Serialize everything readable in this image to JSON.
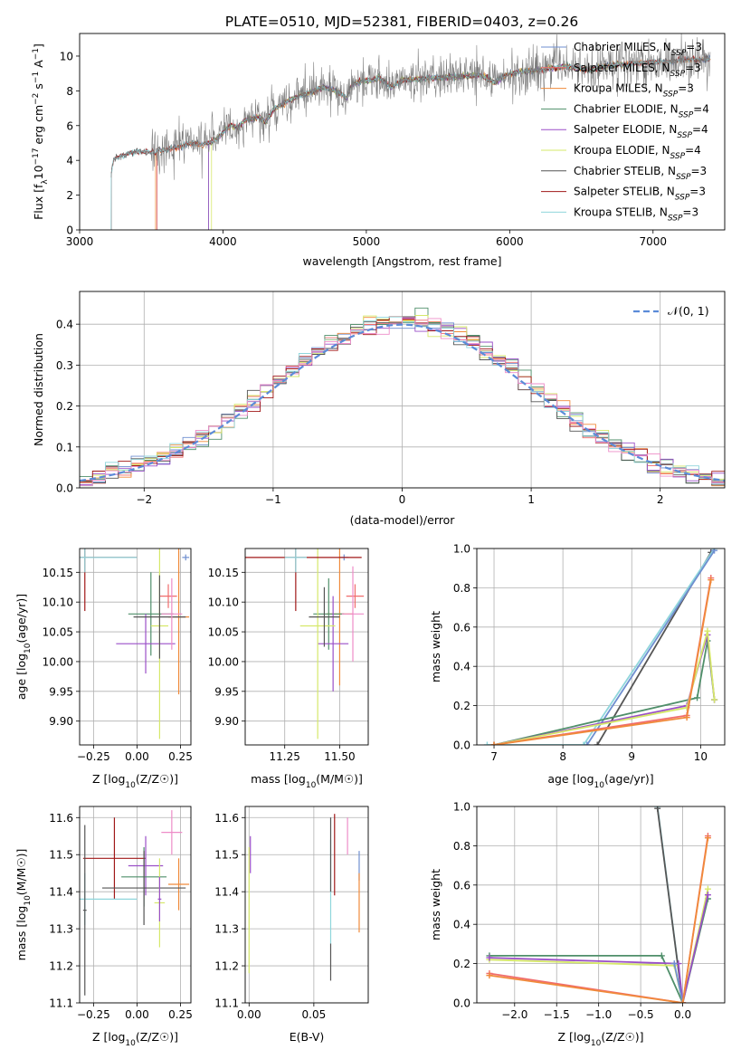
{
  "figure_title": "PLATE=0510, MJD=52381, FIBERID=0403, z=0.26",
  "colors": {
    "Chabrier MILES": "#6f8fd0",
    "Salpeter MILES": "#f06c6c",
    "Kroupa MILES": "#f08a3a",
    "Chabrier ELODIE": "#4f8f6a",
    "Salpeter ELODIE": "#9a4fc8",
    "Kroupa ELODIE": "#d6e86a",
    "Chabrier STELIB": "#555555",
    "Salpeter STELIB": "#a01818",
    "Kroupa STELIB": "#8fd6dc",
    "pink": "#ee8cc8",
    "normal": "#5b8bd8"
  },
  "chart_data": [
    {
      "id": "spectrum",
      "type": "line",
      "title": "PLATE=0510, MJD=52381, FIBERID=0403, z=0.26",
      "xlabel": "wavelength [Angstrom, rest frame]",
      "ylabel": "Flux [f_λ 10^-17 erg cm^-2 s^-1 A^-1]",
      "xlim": [
        3000,
        7500
      ],
      "ylim": [
        0,
        11.3
      ],
      "xticks": [
        3000,
        4000,
        5000,
        6000,
        7000
      ],
      "yticks": [
        0,
        2,
        4,
        6,
        8,
        10
      ],
      "grid": false,
      "legend_position": "right",
      "legend": [
        {
          "name": "Chabrier MILES",
          "base": "Chabrier MILES",
          "nssp": "=3"
        },
        {
          "name": "Salpeter MILES",
          "base": "Salpeter MILES",
          "nssp": "=3"
        },
        {
          "name": "Kroupa MILES",
          "base": "Kroupa MILES",
          "nssp": "=3"
        },
        {
          "name": "Chabrier ELODIE",
          "base": "Chabrier ELODIE",
          "nssp": "=4"
        },
        {
          "name": "Salpeter ELODIE",
          "base": "Salpeter ELODIE",
          "nssp": "=4"
        },
        {
          "name": "Kroupa ELODIE",
          "base": "Kroupa ELODIE",
          "nssp": "=4"
        },
        {
          "name": "Chabrier STELIB",
          "base": "Chabrier STELIB",
          "nssp": "=3"
        },
        {
          "name": "Salpeter STELIB",
          "base": "Salpeter STELIB",
          "nssp": "=3"
        },
        {
          "name": "Kroupa STELIB",
          "base": "Kroupa STELIB",
          "nssp": "=3"
        }
      ],
      "continuum": [
        [
          3220,
          3.2
        ],
        [
          3240,
          4.1
        ],
        [
          3300,
          4.3
        ],
        [
          3400,
          4.5
        ],
        [
          3500,
          4.5
        ],
        [
          3600,
          4.6
        ],
        [
          3700,
          4.8
        ],
        [
          3800,
          5.0
        ],
        [
          3850,
          4.9
        ],
        [
          3900,
          5.0
        ],
        [
          3950,
          5.2
        ],
        [
          4000,
          5.6
        ],
        [
          4050,
          6.0
        ],
        [
          4100,
          5.9
        ],
        [
          4150,
          6.3
        ],
        [
          4200,
          6.4
        ],
        [
          4250,
          6.5
        ],
        [
          4300,
          6.2
        ],
        [
          4350,
          6.9
        ],
        [
          4400,
          7.2
        ],
        [
          4500,
          7.6
        ],
        [
          4600,
          7.9
        ],
        [
          4700,
          8.2
        ],
        [
          4800,
          8.0
        ],
        [
          4860,
          7.6
        ],
        [
          4900,
          8.4
        ],
        [
          5000,
          8.6
        ],
        [
          5100,
          8.7
        ],
        [
          5170,
          8.2
        ],
        [
          5250,
          8.6
        ],
        [
          5400,
          8.7
        ],
        [
          5600,
          8.8
        ],
        [
          5800,
          8.9
        ],
        [
          5890,
          8.5
        ],
        [
          6000,
          9.0
        ],
        [
          6200,
          9.2
        ],
        [
          6400,
          9.4
        ],
        [
          6563,
          9.2
        ],
        [
          6700,
          9.5
        ],
        [
          6900,
          9.6
        ],
        [
          7100,
          9.7
        ],
        [
          7300,
          9.8
        ]
      ],
      "model_ranges": {
        "Chabrier MILES": [
          3540,
          7400
        ],
        "Salpeter MILES": [
          3540,
          7400
        ],
        "Kroupa MILES": [
          3530,
          7400
        ],
        "Chabrier ELODIE": [
          3900,
          6800
        ],
        "Salpeter ELODIE": [
          3900,
          6800
        ],
        "Kroupa ELODIE": [
          3920,
          6800
        ],
        "Chabrier STELIB": [
          3220,
          7400
        ],
        "Salpeter STELIB": [
          3220,
          7400
        ],
        "Kroupa STELIB": [
          3220,
          7400
        ]
      }
    },
    {
      "id": "histogram",
      "type": "line",
      "xlabel": "(data-model)/error",
      "ylabel": "Normed distribution",
      "xlim": [
        -2.5,
        2.5
      ],
      "ylim": [
        0,
        0.48
      ],
      "xticks": [
        -2,
        -1,
        0,
        1,
        2
      ],
      "yticks": [
        0.0,
        0.1,
        0.2,
        0.3,
        0.4
      ],
      "grid": true,
      "legend_position": "top-right",
      "normal_label": "𝒩(0, 1)",
      "bin_width": 0.1,
      "bins_start": -2.5
    },
    {
      "id": "age_vs_Z",
      "type": "scatter",
      "xlabel": "Z [log10(Z/Z☉)]",
      "ylabel": "age [log10(age/yr)]",
      "xlim": [
        -0.33,
        0.31
      ],
      "ylim": [
        9.86,
        10.19
      ],
      "xticks": [
        -0.25,
        0.0,
        0.25
      ],
      "yticks": [
        9.9,
        9.95,
        10.0,
        10.05,
        10.1,
        10.15
      ],
      "grid": true,
      "points": [
        {
          "model": "Chabrier MILES",
          "x": 0.28,
          "y": 10.175,
          "xerr": 0.02,
          "yerr": 0.005
        },
        {
          "model": "Salpeter MILES",
          "x": 0.18,
          "y": 10.11,
          "xerr": 0.05,
          "yerr": 0.02
        },
        {
          "model": "Kroupa MILES",
          "x": 0.24,
          "y": 10.075,
          "xerr": 0.06,
          "yerr": 0.13
        },
        {
          "model": "Chabrier ELODIE",
          "x": 0.08,
          "y": 10.08,
          "xerr": 0.13,
          "yerr": 0.07
        },
        {
          "model": "Salpeter ELODIE",
          "x": 0.05,
          "y": 10.03,
          "xerr": 0.17,
          "yerr": 0.05
        },
        {
          "model": "Kroupa ELODIE",
          "x": 0.13,
          "y": 10.06,
          "xerr": 0.05,
          "yerr": 0.19
        },
        {
          "model": "Chabrier STELIB",
          "x": 0.13,
          "y": 10.075,
          "xerr": 0.15,
          "yerr": 0.07
        },
        {
          "model": "Salpeter STELIB",
          "x": -0.3,
          "y": 10.175,
          "xerr": 0.3,
          "yerr": 0.09
        },
        {
          "model": "Kroupa STELIB",
          "x": -0.3,
          "y": 10.175,
          "xerr": 0.3,
          "yerr": 0.025
        },
        {
          "model": "pink",
          "x": 0.2,
          "y": 10.08,
          "xerr": 0.06,
          "yerr": 0.06
        }
      ]
    },
    {
      "id": "age_vs_mass",
      "type": "scatter",
      "xlabel": "mass [log10(M/M☉)]",
      "ylabel": "",
      "xlim": [
        11.07,
        11.63
      ],
      "ylim": [
        9.86,
        10.19
      ],
      "xticks": [
        11.25,
        11.5
      ],
      "yticks": [
        9.9,
        9.95,
        10.0,
        10.05,
        10.1,
        10.15
      ],
      "grid": true,
      "points": [
        {
          "model": "Chabrier MILES",
          "x": 11.52,
          "y": 10.175,
          "xerr": 0.02,
          "yerr": 0.005
        },
        {
          "model": "Salpeter MILES",
          "x": 11.57,
          "y": 10.11,
          "xerr": 0.04,
          "yerr": 0.02
        },
        {
          "model": "Kroupa MILES",
          "x": 11.5,
          "y": 10.08,
          "xerr": 0.06,
          "yerr": 0.12
        },
        {
          "model": "Chabrier ELODIE",
          "x": 11.45,
          "y": 10.08,
          "xerr": 0.07,
          "yerr": 0.06
        },
        {
          "model": "Salpeter ELODIE",
          "x": 11.47,
          "y": 10.03,
          "xerr": 0.07,
          "yerr": 0.08
        },
        {
          "model": "Kroupa ELODIE",
          "x": 11.4,
          "y": 10.06,
          "xerr": 0.08,
          "yerr": 0.19
        },
        {
          "model": "Chabrier STELIB",
          "x": 11.43,
          "y": 10.075,
          "xerr": 0.07,
          "yerr": 0.05
        },
        {
          "model": "Salpeter STELIB",
          "x": 11.3,
          "y": 10.175,
          "xerr": 0.3,
          "yerr": 0.09
        },
        {
          "model": "Kroupa STELIB",
          "x": 11.3,
          "y": 10.175,
          "xerr": 0.05,
          "yerr": 0.025
        },
        {
          "model": "pink",
          "x": 11.56,
          "y": 10.08,
          "xerr": 0.05,
          "yerr": 0.08
        }
      ]
    },
    {
      "id": "weight_vs_age",
      "type": "line",
      "xlabel": "age [log10(age/yr)]",
      "ylabel": "mass weight",
      "xlim": [
        6.75,
        10.35
      ],
      "ylim": [
        0,
        1.0
      ],
      "xticks": [
        7,
        8,
        9,
        10
      ],
      "yticks": [
        0.0,
        0.2,
        0.4,
        0.6,
        0.8,
        1.0
      ],
      "grid": true,
      "series": [
        {
          "model": "Chabrier STELIB",
          "x": [
            8.5,
            10.15
          ],
          "y": [
            0.0,
            0.98
          ]
        },
        {
          "model": "Kroupa STELIB",
          "x": [
            6.9,
            8.3,
            10.2
          ],
          "y": [
            0.0,
            0.0,
            1.0
          ]
        },
        {
          "model": "Chabrier MILES",
          "x": [
            8.35,
            10.2
          ],
          "y": [
            0.0,
            0.99
          ]
        },
        {
          "model": "Chabrier ELODIE",
          "x": [
            7.0,
            9.95,
            10.1,
            10.2
          ],
          "y": [
            0.0,
            0.24,
            0.53,
            0.23
          ]
        },
        {
          "model": "Salpeter ELODIE",
          "x": [
            7.0,
            9.8,
            10.1,
            10.2
          ],
          "y": [
            0.0,
            0.2,
            0.56,
            0.23
          ]
        },
        {
          "model": "Kroupa ELODIE",
          "x": [
            7.0,
            9.8,
            10.1,
            10.2
          ],
          "y": [
            0.0,
            0.19,
            0.58,
            0.23
          ]
        },
        {
          "model": "Salpeter MILES",
          "x": [
            7.0,
            9.8,
            10.15
          ],
          "y": [
            0.0,
            0.15,
            0.85
          ]
        },
        {
          "model": "Kroupa MILES",
          "x": [
            7.0,
            9.8,
            10.15
          ],
          "y": [
            0.0,
            0.14,
            0.84
          ]
        }
      ]
    },
    {
      "id": "mass_vs_Z",
      "type": "scatter",
      "xlabel": "Z [log10(Z/Z☉)]",
      "ylabel": "mass [log10(M/M☉)]",
      "xlim": [
        -0.33,
        0.31
      ],
      "ylim": [
        11.1,
        11.63
      ],
      "xticks": [
        -0.25,
        0.0,
        0.25
      ],
      "yticks": [
        11.1,
        11.2,
        11.3,
        11.4,
        11.5,
        11.6
      ],
      "grid": true,
      "points": [
        {
          "model": "pink",
          "x": 0.2,
          "y": 11.56,
          "xerr": 0.06,
          "yerr": 0.06
        },
        {
          "model": "Salpeter STELIB",
          "x": -0.13,
          "y": 11.49,
          "xerr": 0.18,
          "yerr": 0.11
        },
        {
          "model": "Salpeter ELODIE",
          "x": 0.05,
          "y": 11.47,
          "xerr": 0.1,
          "yerr": 0.08
        },
        {
          "model": "Chabrier ELODIE",
          "x": 0.04,
          "y": 11.44,
          "xerr": 0.13,
          "yerr": 0.08
        },
        {
          "model": "Kroupa MILES",
          "x": 0.24,
          "y": 11.42,
          "xerr": 0.06,
          "yerr": 0.07
        },
        {
          "model": "Chabrier STELIB",
          "x": 0.04,
          "y": 11.41,
          "xerr": 0.24,
          "yerr": 0.1
        },
        {
          "model": "Kroupa STELIB",
          "x": -0.3,
          "y": 11.38,
          "xerr": 0.3,
          "yerr": 0.07
        },
        {
          "model": "Kroupa ELODIE",
          "x": 0.13,
          "y": 11.37,
          "xerr": 0.03,
          "yerr": 0.12
        },
        {
          "model": "Salpeter ELODIE",
          "x": 0.13,
          "y": 11.38,
          "xerr": 0.01,
          "yerr": 0.06
        },
        {
          "model": "Chabrier STELIB",
          "x": -0.3,
          "y": 11.35,
          "xerr": 0.01,
          "yerr": 0.23
        }
      ]
    },
    {
      "id": "mass_vs_EBV",
      "type": "scatter",
      "xlabel": "E(B-V)",
      "ylabel": "",
      "xlim": [
        -0.003,
        0.092
      ],
      "ylim": [
        11.1,
        11.63
      ],
      "xticks": [
        0.0,
        0.05
      ],
      "yticks": [
        11.1,
        11.2,
        11.3,
        11.4,
        11.5,
        11.6
      ],
      "grid": true,
      "points": [
        {
          "model": "Salpeter ELODIE",
          "x": 0.001,
          "y": 11.5,
          "yerr": 0.05
        },
        {
          "model": "Kroupa ELODIE",
          "x": 0.0,
          "y": 11.35,
          "yerr": 0.17
        },
        {
          "model": "Chabrier STELIB",
          "x": 0.063,
          "y": 11.21,
          "yerr": 0.05
        },
        {
          "model": "Kroupa STELIB",
          "x": 0.063,
          "y": 11.4,
          "yerr": 0.14
        },
        {
          "model": "Chabrier STELIB",
          "x": 0.063,
          "y": 11.5,
          "yerr": 0.1
        },
        {
          "model": "Salpeter STELIB",
          "x": 0.066,
          "y": 11.5,
          "yerr": 0.11
        },
        {
          "model": "pink",
          "x": 0.076,
          "y": 11.55,
          "yerr": 0.05
        },
        {
          "model": "Chabrier MILES",
          "x": 0.085,
          "y": 11.47,
          "yerr": 0.04
        },
        {
          "model": "Kroupa MILES",
          "x": 0.085,
          "y": 11.37,
          "yerr": 0.08
        }
      ]
    },
    {
      "id": "weight_vs_Z",
      "type": "line",
      "xlabel": "Z [log10(Z/Z☉)]",
      "ylabel": "mass weight",
      "xlim": [
        -2.45,
        0.5
      ],
      "ylim": [
        0,
        1.0
      ],
      "xticks": [
        -2.0,
        -1.5,
        -1.0,
        -0.5,
        0.0
      ],
      "yticks": [
        0.0,
        0.2,
        0.4,
        0.6,
        0.8,
        1.0
      ],
      "grid": true,
      "series": [
        {
          "model": "Kroupa STELIB",
          "x": [
            -0.3,
            0.0
          ],
          "y": [
            1.0,
            0.0
          ]
        },
        {
          "model": "Chabrier STELIB",
          "x": [
            -0.3,
            0.0
          ],
          "y": [
            0.99,
            0.0
          ]
        },
        {
          "model": "Chabrier ELODIE",
          "x": [
            -2.3,
            -0.25,
            0.0,
            0.3
          ],
          "y": [
            0.24,
            0.24,
            0.0,
            0.53
          ]
        },
        {
          "model": "Kroupa ELODIE",
          "x": [
            -2.3,
            -0.1,
            0.0,
            0.3
          ],
          "y": [
            0.22,
            0.19,
            0.0,
            0.58
          ]
        },
        {
          "model": "Salpeter ELODIE",
          "x": [
            -2.3,
            -0.05,
            0.0,
            0.3
          ],
          "y": [
            0.23,
            0.2,
            0.0,
            0.55
          ]
        },
        {
          "model": "Chabrier MILES",
          "x": [
            -0.1,
            0.0
          ],
          "y": [
            0.2,
            0.0
          ]
        },
        {
          "model": "Salpeter MILES",
          "x": [
            -2.3,
            0.0,
            0.3
          ],
          "y": [
            0.15,
            0.0,
            0.85
          ]
        },
        {
          "model": "Kroupa MILES",
          "x": [
            -2.3,
            0.0,
            0.3
          ],
          "y": [
            0.14,
            0.0,
            0.84
          ]
        }
      ]
    }
  ]
}
